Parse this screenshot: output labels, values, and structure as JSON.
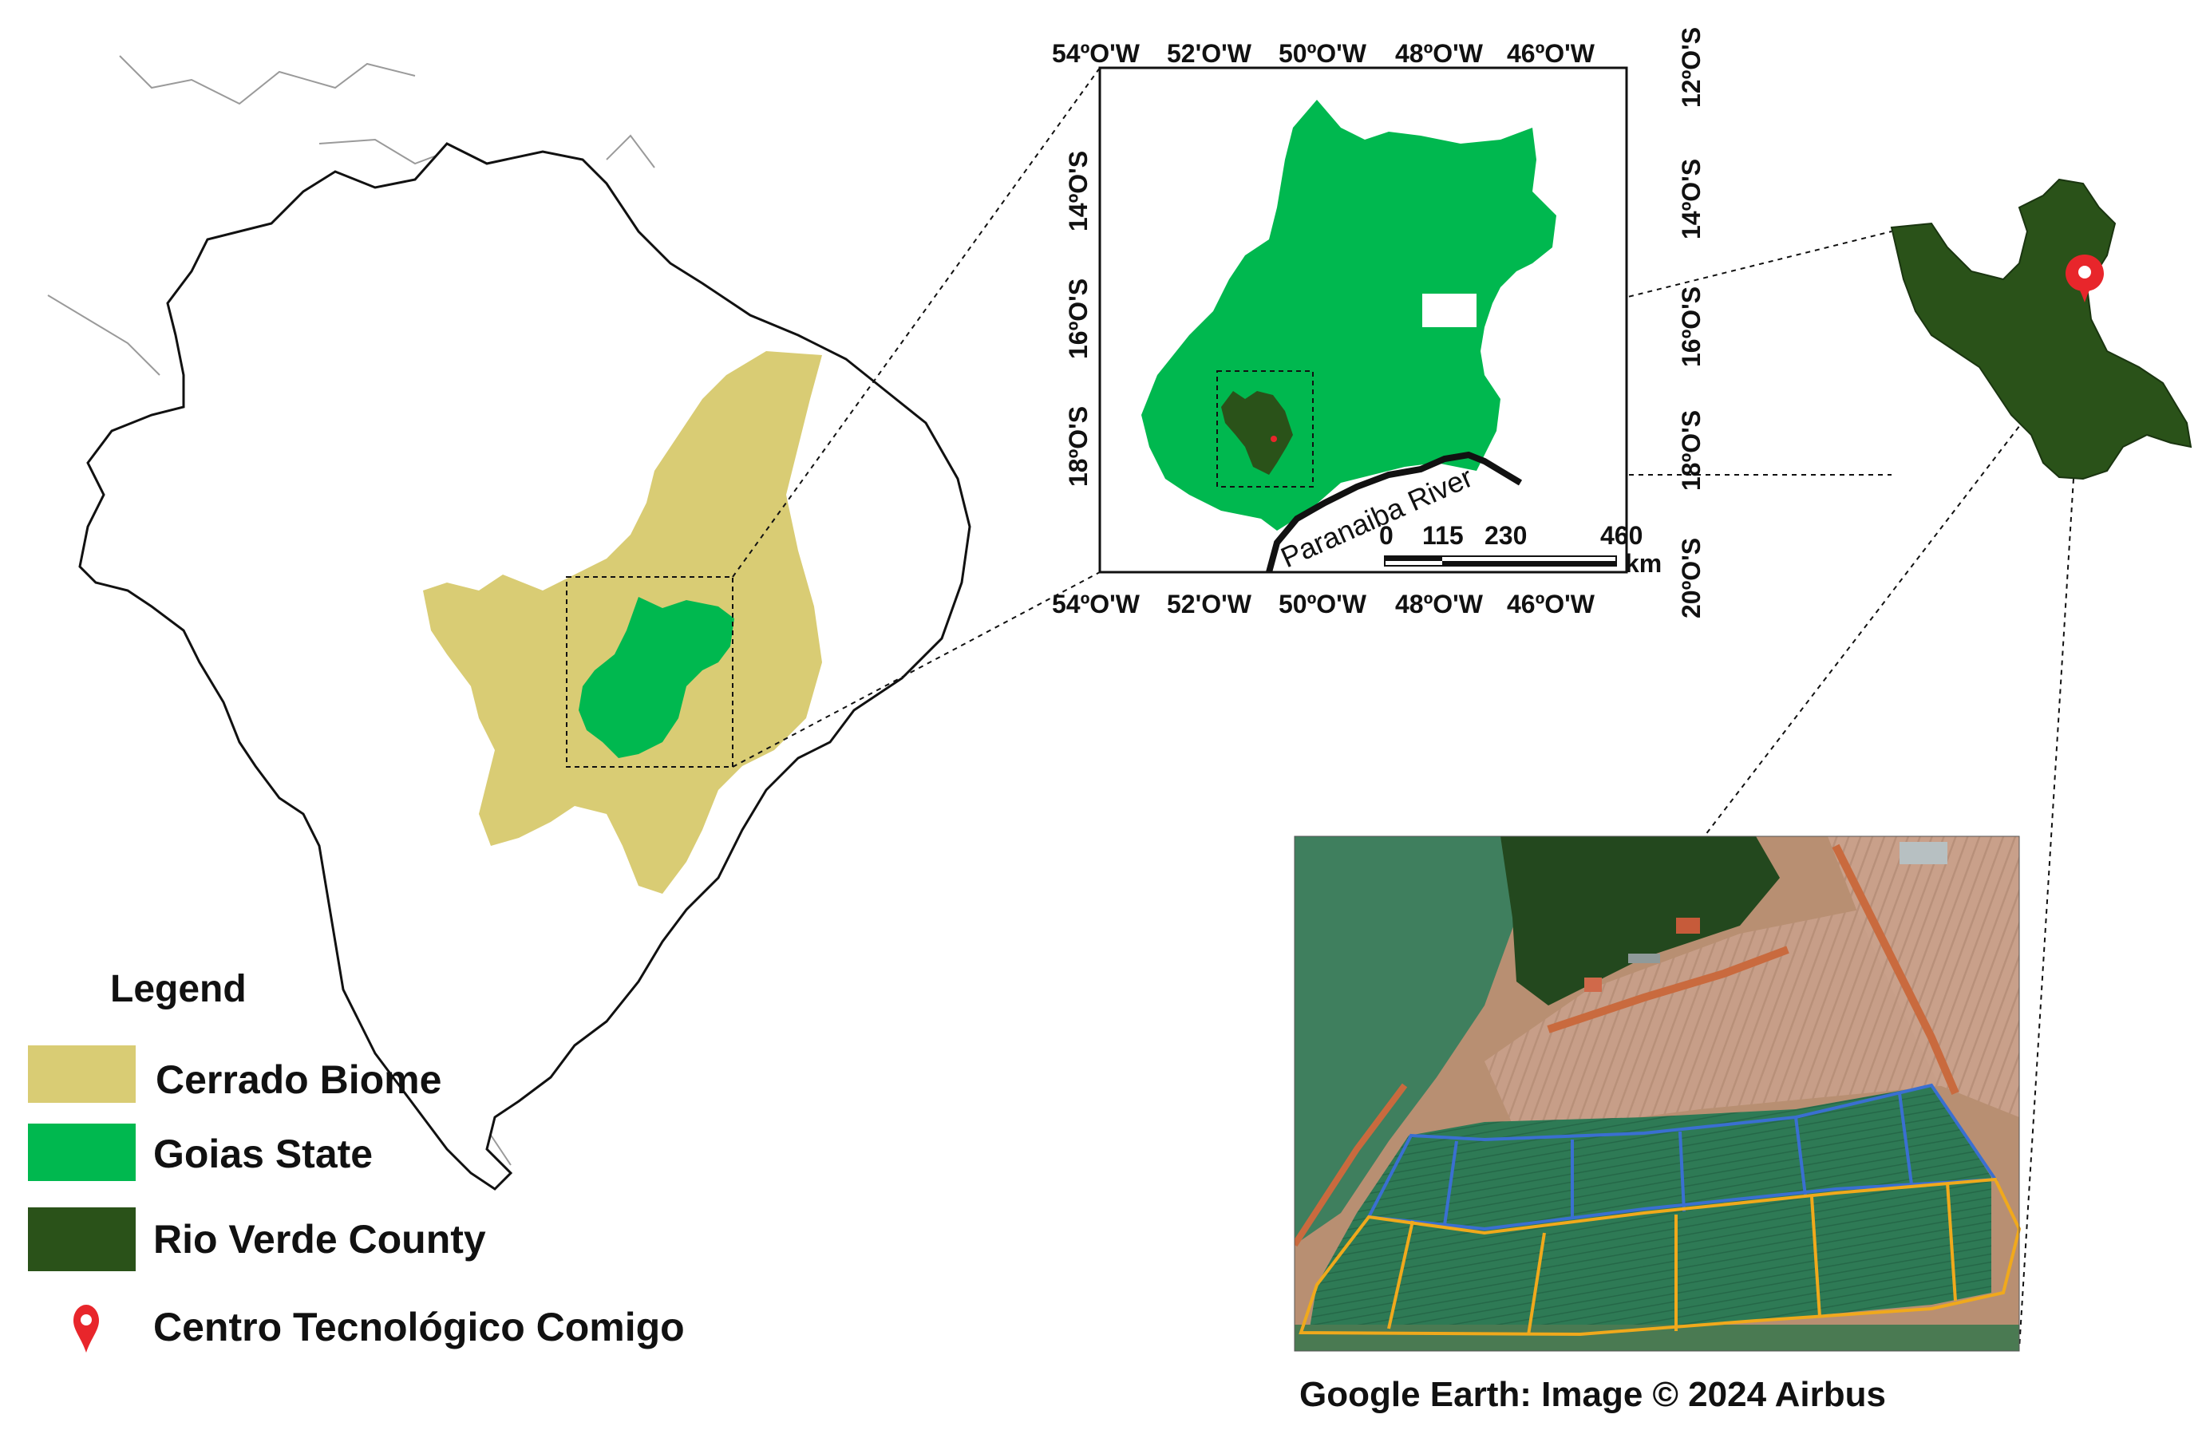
{
  "colors": {
    "cerrado": "#d9cc74",
    "goias": "#00b84f",
    "rio_verde": "#2a5219",
    "marker": "#e8262b",
    "border": "#111111",
    "neighbor_border": "#9a9a9a",
    "plot_blue": "#3a6fd1",
    "plot_orange": "#f0a91c"
  },
  "legend": {
    "title": "Legend",
    "items": [
      {
        "label": "Cerrado Biome",
        "color": "#d9cc74",
        "icon": "swatch"
      },
      {
        "label": "Goias State",
        "color": "#00b84f",
        "icon": "swatch"
      },
      {
        "label": "Rio Verde County",
        "color": "#2a5219",
        "icon": "swatch"
      },
      {
        "label": "Centro Tecnológico Comigo",
        "color": "#e8262b",
        "icon": "map-pin-icon"
      }
    ]
  },
  "inset_map": {
    "lon_labels": [
      "54ºO'W",
      "52'O'W",
      "50ºO'W",
      "48ºO'W",
      "46ºO'W"
    ],
    "lat_labels_left": [
      "14ºO'S",
      "16ºO'S",
      "18ºO'S"
    ],
    "lat_labels_right": [
      "12ºO'S",
      "14ºO'S",
      "16ºO'S",
      "18ºO'S",
      "20ºO'S"
    ],
    "river_label": "Paranaiba River",
    "scale_labels": [
      "0",
      "115",
      "230",
      "460"
    ],
    "scale_unit": "km"
  },
  "satellite": {
    "credit": "Google Earth: Image © 2024 Airbus"
  }
}
